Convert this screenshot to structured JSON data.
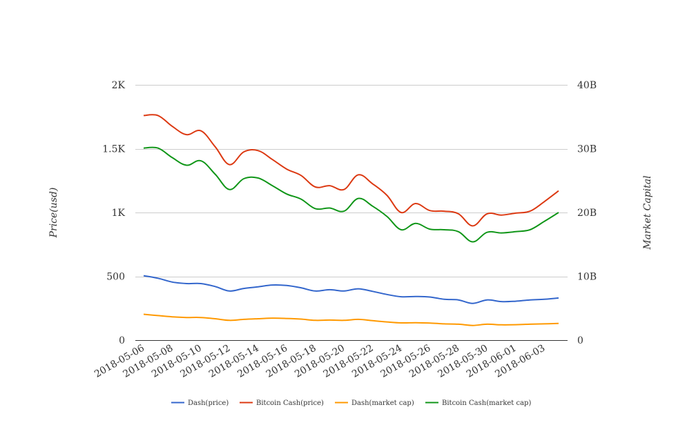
{
  "chart_data": {
    "type": "line",
    "title": "",
    "xlabel": "",
    "y_left": {
      "label": "Price(usd)",
      "ylim": [
        0,
        2000
      ],
      "ticks": [
        0,
        500,
        1000,
        1500,
        2000
      ],
      "tick_labels": [
        "0",
        "500",
        "1K",
        "1.5K",
        "2K"
      ]
    },
    "y_right": {
      "label": "Market Capital",
      "ylim": [
        0,
        40000000000
      ],
      "ticks": [
        0,
        10000000000,
        20000000000,
        30000000000,
        40000000000
      ],
      "tick_labels": [
        "0",
        "10B",
        "20B",
        "30B",
        "40B"
      ]
    },
    "grid": true,
    "legend_position": "bottom",
    "x_tick_labels": [
      "2018-05-06",
      "2018-05-08",
      "2018-05-10",
      "2018-05-12",
      "2018-05-14",
      "2018-05-16",
      "2018-05-18",
      "2018-05-20",
      "2018-05-22",
      "2018-05-24",
      "2018-05-26",
      "2018-05-28",
      "2018-05-30",
      "2018-06-01",
      "2018-06-03"
    ],
    "x": [
      "2018-05-06",
      "2018-05-07",
      "2018-05-08",
      "2018-05-09",
      "2018-05-10",
      "2018-05-11",
      "2018-05-12",
      "2018-05-13",
      "2018-05-14",
      "2018-05-15",
      "2018-05-16",
      "2018-05-17",
      "2018-05-18",
      "2018-05-19",
      "2018-05-20",
      "2018-05-21",
      "2018-05-22",
      "2018-05-23",
      "2018-05-24",
      "2018-05-25",
      "2018-05-26",
      "2018-05-27",
      "2018-05-28",
      "2018-05-29",
      "2018-05-30",
      "2018-05-31",
      "2018-06-01",
      "2018-06-02",
      "2018-06-03",
      "2018-06-04"
    ],
    "series": [
      {
        "name": "Dash(price)",
        "axis": "left",
        "color": "#3366cc",
        "values": [
          505,
          485,
          455,
          443,
          443,
          420,
          385,
          405,
          418,
          432,
          428,
          410,
          385,
          395,
          385,
          402,
          382,
          358,
          340,
          342,
          338,
          320,
          315,
          288,
          315,
          302,
          305,
          315,
          320,
          330
        ]
      },
      {
        "name": "Bitcoin Cash(price)",
        "axis": "right",
        "color": "#dc3912",
        "values": [
          35200000000,
          35200000000,
          33500000000,
          32200000000,
          32800000000,
          30300000000,
          27500000000,
          29500000000,
          29700000000,
          28300000000,
          26800000000,
          25800000000,
          24000000000,
          24200000000,
          23600000000,
          25900000000,
          24500000000,
          22700000000,
          20000000000,
          21400000000,
          20300000000,
          20200000000,
          19800000000,
          17900000000,
          19800000000,
          19600000000,
          19900000000,
          20200000000,
          21700000000,
          23400000000
        ]
      },
      {
        "name": "Dash(market cap)",
        "axis": "right",
        "color": "#ff9900",
        "values": [
          4050000000,
          3850000000,
          3650000000,
          3550000000,
          3550000000,
          3350000000,
          3100000000,
          3250000000,
          3350000000,
          3450000000,
          3400000000,
          3300000000,
          3100000000,
          3150000000,
          3100000000,
          3250000000,
          3050000000,
          2850000000,
          2700000000,
          2720000000,
          2680000000,
          2550000000,
          2500000000,
          2300000000,
          2500000000,
          2400000000,
          2420000000,
          2500000000,
          2550000000,
          2620000000
        ]
      },
      {
        "name": "Bitcoin Cash(market cap)",
        "axis": "right",
        "color": "#109618",
        "values": [
          30100000000,
          30100000000,
          28600000000,
          27400000000,
          28100000000,
          26000000000,
          23600000000,
          25300000000,
          25400000000,
          24200000000,
          22900000000,
          22100000000,
          20600000000,
          20700000000,
          20200000000,
          22200000000,
          21000000000,
          19400000000,
          17300000000,
          18300000000,
          17400000000,
          17300000000,
          17000000000,
          15400000000,
          16900000000,
          16800000000,
          17000000000,
          17300000000,
          18600000000,
          20000000000
        ]
      }
    ]
  }
}
